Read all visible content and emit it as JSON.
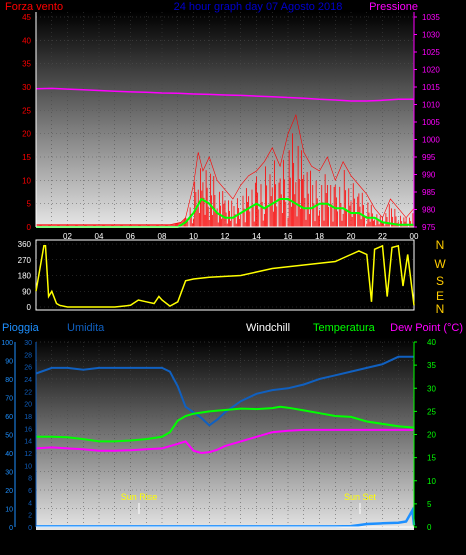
{
  "header_top": {
    "left_label": "Forza vento",
    "center_title": "24 hour graph day  07 Agosto 2018",
    "right_label": "Pressione"
  },
  "direction_labels": [
    "N",
    "W",
    "S",
    "E",
    "N"
  ],
  "header_bottom": {
    "pioggia": "Pioggia",
    "umidita": "Umidita",
    "windchill": "Windchill",
    "temperatura": "Temperatura",
    "dewpoint": "Dew Point (°C)"
  },
  "sun": {
    "rise_label": "Sun Rise",
    "set_label": "Sun Set"
  },
  "colors": {
    "wind": "#ff0000",
    "gust_avg": "#00ff00",
    "pressure": "#ff00ff",
    "direction": "#ffff00",
    "humidity": "#1060c0",
    "temperature": "#00ff00",
    "dewpoint": "#ff00ff",
    "rain": "#1e90ff",
    "direction_label": "#ffcc00"
  },
  "chart_data": [
    {
      "type": "line",
      "title": "24 hour graph day  07 Agosto 2018",
      "x_ticks": [
        "02",
        "04",
        "06",
        "08",
        "10",
        "12",
        "14",
        "16",
        "18",
        "20",
        "22",
        "00"
      ],
      "xlim": [
        0,
        24
      ],
      "y_left": {
        "label": "Forza vento",
        "lim": [
          0,
          45
        ],
        "ticks": [
          "0",
          "5",
          "10",
          "15",
          "20",
          "25",
          "30",
          "35",
          "40",
          "45"
        ]
      },
      "y_right": {
        "label": "Pressione",
        "lim": [
          975,
          1035
        ],
        "ticks": [
          "975",
          "980",
          "985",
          "990",
          "995",
          "1000",
          "1005",
          "1010",
          "1015",
          "1020",
          "1025",
          "1030",
          "1035"
        ]
      },
      "series": [
        {
          "name": "Pressione",
          "axis": "right",
          "x": [
            0,
            1,
            2,
            3,
            4,
            5,
            6,
            7,
            8,
            9,
            10,
            11,
            12,
            13,
            14,
            15,
            16,
            17,
            18,
            19,
            20,
            21,
            22,
            23,
            24
          ],
          "values": [
            1014.5,
            1014.6,
            1014.4,
            1014.2,
            1014.0,
            1013.8,
            1013.6,
            1013.5,
            1013.3,
            1013.2,
            1013.0,
            1012.9,
            1012.7,
            1012.6,
            1012.4,
            1012.2,
            1012.0,
            1011.8,
            1011.5,
            1011.3,
            1011.0,
            1011.0,
            1011.2,
            1011.5,
            1011.5
          ]
        },
        {
          "name": "Forza vento",
          "axis": "left",
          "x": [
            0,
            8.5,
            9.2,
            9.5,
            10,
            10.3,
            10.6,
            11,
            11.5,
            12,
            12.5,
            13,
            13.5,
            14,
            14.5,
            15,
            15.5,
            16,
            16.5,
            17,
            17.5,
            18,
            18.5,
            19,
            19.5,
            20,
            20.5,
            21,
            21.5,
            22,
            22.5,
            23,
            23.5,
            24
          ],
          "values": [
            0.5,
            0.5,
            1,
            2,
            9,
            16,
            12,
            15,
            10,
            8,
            6,
            9,
            11,
            12,
            14,
            17,
            13,
            20,
            24,
            16,
            13,
            12,
            15,
            10,
            14,
            11,
            9,
            7,
            4,
            2,
            6,
            4,
            2,
            4
          ]
        },
        {
          "name": "Vento medio",
          "axis": "left",
          "x": [
            0,
            9,
            9.5,
            10,
            10.5,
            11,
            11.5,
            12,
            12.5,
            13,
            13.5,
            14,
            14.5,
            15,
            15.5,
            16,
            16.5,
            17,
            17.5,
            18,
            18.5,
            19,
            19.5,
            20,
            20.5,
            21,
            21.5,
            22,
            23,
            24
          ],
          "values": [
            0,
            0,
            1,
            3,
            6,
            5,
            3,
            2,
            2,
            3,
            4,
            5,
            4,
            5,
            6,
            6,
            5,
            4,
            4,
            5,
            5,
            4,
            4,
            3,
            3,
            2,
            2,
            1,
            0.5,
            0.5
          ]
        }
      ]
    },
    {
      "type": "line",
      "y_ticks": [
        "0",
        "90",
        "180",
        "270",
        "360"
      ],
      "ylim": [
        0,
        360
      ],
      "x": [
        0,
        0.5,
        0.6,
        0.8,
        1,
        1.3,
        1.5,
        2,
        3,
        4,
        5,
        6,
        6.5,
        7,
        7.5,
        7.8,
        8,
        8.5,
        9,
        9.5,
        10,
        11,
        12,
        13,
        14,
        15,
        16,
        17,
        18,
        19,
        19.5,
        20,
        20.5,
        21,
        21.3,
        21.5,
        22,
        22.3,
        22.6,
        23,
        23.3,
        23.6,
        24
      ],
      "values": [
        90,
        350,
        350,
        60,
        90,
        20,
        10,
        0,
        0,
        0,
        0,
        10,
        40,
        30,
        20,
        60,
        40,
        5,
        30,
        150,
        160,
        170,
        175,
        180,
        200,
        220,
        230,
        240,
        250,
        260,
        280,
        300,
        320,
        300,
        30,
        330,
        350,
        60,
        340,
        350,
        120,
        300,
        10
      ],
      "series_name": "Direzione vento"
    },
    {
      "type": "line",
      "x_ticks": [
        "02",
        "04",
        "06",
        "08",
        "10",
        "12",
        "14",
        "16",
        "18",
        "20",
        "22",
        "00"
      ],
      "xlim": [
        0,
        24
      ],
      "y_left": {
        "label": "Umidita",
        "lim": [
          0,
          100
        ],
        "ticks": [
          "0",
          "10",
          "20",
          "30",
          "40",
          "50",
          "60",
          "70",
          "80",
          "90",
          "100"
        ]
      },
      "y_left2": {
        "lim": [
          0,
          30
        ],
        "ticks": [
          "0",
          "2",
          "4",
          "6",
          "8",
          "10",
          "12",
          "14",
          "16",
          "18",
          "20",
          "22",
          "24",
          "26",
          "28",
          "30"
        ]
      },
      "y_right": {
        "label": "Dew Point (°C)",
        "lim": [
          0,
          40
        ],
        "ticks": [
          "0",
          "5",
          "10",
          "15",
          "20",
          "25",
          "30",
          "35",
          "40"
        ]
      },
      "series": [
        {
          "name": "Umidita",
          "axis": "left",
          "x": [
            0,
            1,
            2,
            3,
            4,
            5,
            6,
            7,
            8,
            8.5,
            9,
            9.5,
            10,
            10.5,
            11,
            11.5,
            12,
            13,
            14,
            15,
            16,
            17,
            18,
            19,
            20,
            21,
            22,
            23,
            24
          ],
          "values": [
            83,
            86,
            86,
            85,
            86,
            86,
            86,
            86,
            86,
            84,
            76,
            65,
            62,
            59,
            55,
            58,
            62,
            68,
            72,
            74,
            75,
            77,
            80,
            82,
            84,
            86,
            88,
            92,
            92
          ]
        },
        {
          "name": "Temperatura",
          "axis": "right",
          "x": [
            0,
            1,
            2,
            3,
            4,
            5,
            6,
            7,
            8,
            8.5,
            9,
            9.5,
            10,
            11,
            12,
            13,
            14,
            15,
            15.5,
            16,
            17,
            18,
            19,
            20,
            21,
            22,
            23,
            24
          ],
          "values": [
            19.5,
            19.5,
            19.4,
            19,
            18.5,
            18.5,
            18.7,
            19,
            19.5,
            20.5,
            23,
            24,
            24.5,
            25,
            25.3,
            25.6,
            25.5,
            25.7,
            26,
            25.8,
            25.2,
            24.6,
            24,
            23.8,
            22.8,
            22.3,
            21.8,
            21.5
          ]
        },
        {
          "name": "Dew Point",
          "axis": "right",
          "x": [
            0,
            1,
            2,
            3,
            4,
            5,
            6,
            7,
            8,
            9,
            9.5,
            10,
            10.5,
            11,
            11.5,
            12,
            13,
            14,
            15,
            16,
            17,
            18,
            19,
            20,
            21,
            22,
            23,
            24
          ],
          "values": [
            17,
            17.2,
            17,
            16.8,
            16.5,
            16.5,
            16.6,
            16.8,
            17,
            18,
            18.5,
            16.5,
            16,
            16.2,
            16.7,
            17.5,
            18.5,
            19.5,
            20.5,
            20.8,
            21,
            21,
            21,
            21,
            21,
            21,
            21,
            21
          ]
        },
        {
          "name": "Pioggia",
          "axis": "left",
          "x": [
            0,
            19,
            20,
            20.5,
            21,
            22,
            23,
            23.5,
            23.9,
            24
          ],
          "values": [
            0.3,
            0.3,
            0.5,
            1,
            1.6,
            2,
            2.3,
            3,
            9,
            1
          ]
        }
      ],
      "annotations": [
        "Sun Rise",
        "Sun Set"
      ]
    }
  ]
}
